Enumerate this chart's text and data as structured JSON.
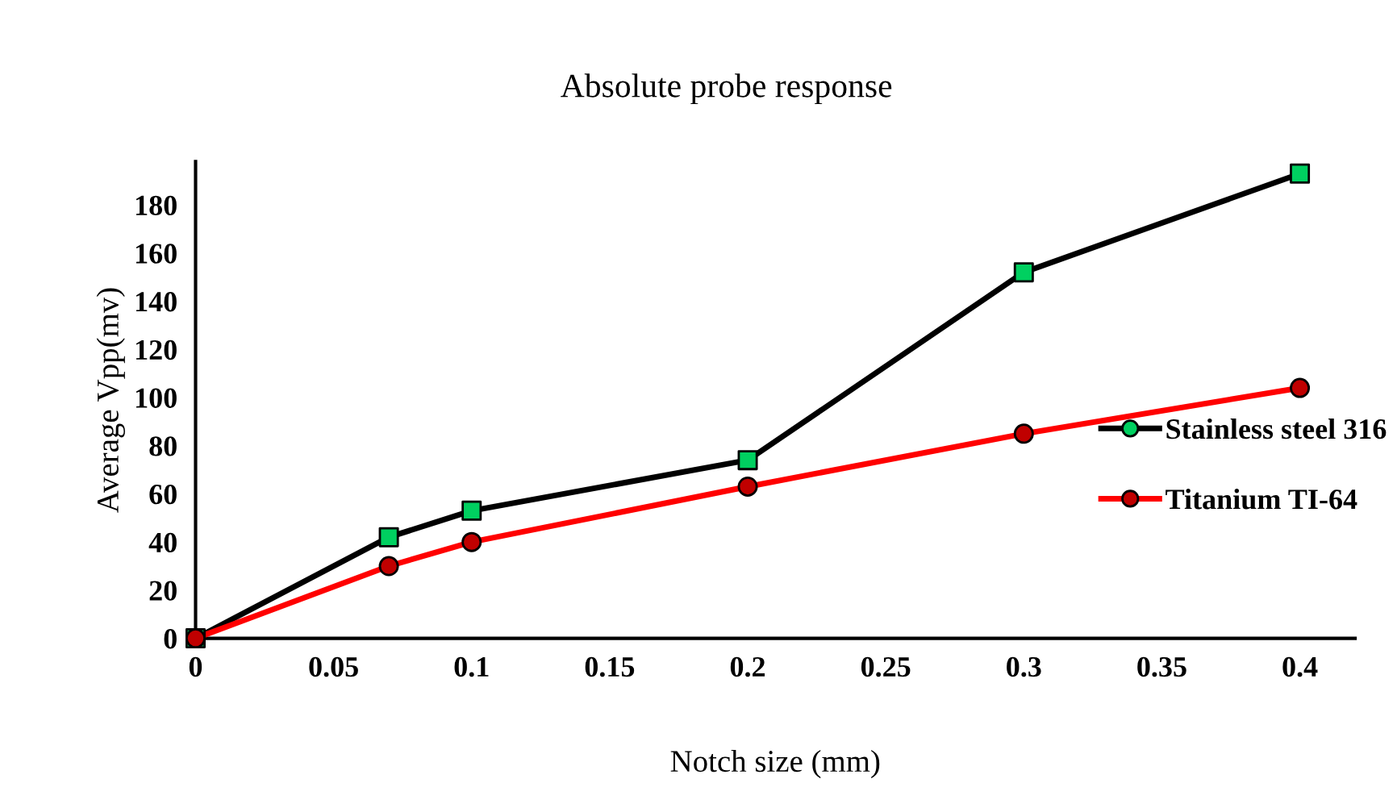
{
  "chart_data": {
    "type": "line",
    "title": "Absolute probe response",
    "xlabel": "Notch size (mm)",
    "ylabel": "Average Vpp(mv)",
    "x": [
      0,
      0.07,
      0.1,
      0.2,
      0.3,
      0.4
    ],
    "series": [
      {
        "name": "Stainless steel 316",
        "color": "#000000",
        "colors": [
          "#00d060",
          "#00d060",
          "#00d060",
          "#00d060",
          "#00d060",
          "#00d060"
        ],
        "marker": "square",
        "values": [
          0,
          42,
          53,
          74,
          152,
          193
        ]
      },
      {
        "name": "Titanium TI-64",
        "color": "#ff0000",
        "colors": [
          "#c00000",
          "#c00000",
          "#c00000",
          "#c00000",
          "#c00000",
          "#c00000"
        ],
        "marker": "circle",
        "values": [
          0,
          30,
          40,
          63,
          85,
          104
        ]
      }
    ],
    "xlim": [
      0,
      0.42
    ],
    "xticks": [
      0,
      0.05,
      0.1,
      0.15,
      0.2,
      0.25,
      0.3,
      0.35,
      0.4
    ],
    "ylim": [
      0,
      198
    ],
    "yticks": [
      0,
      20,
      40,
      60,
      80,
      100,
      120,
      140,
      160,
      180
    ],
    "grid": false,
    "legend": "right",
    "line_style": "solid"
  }
}
